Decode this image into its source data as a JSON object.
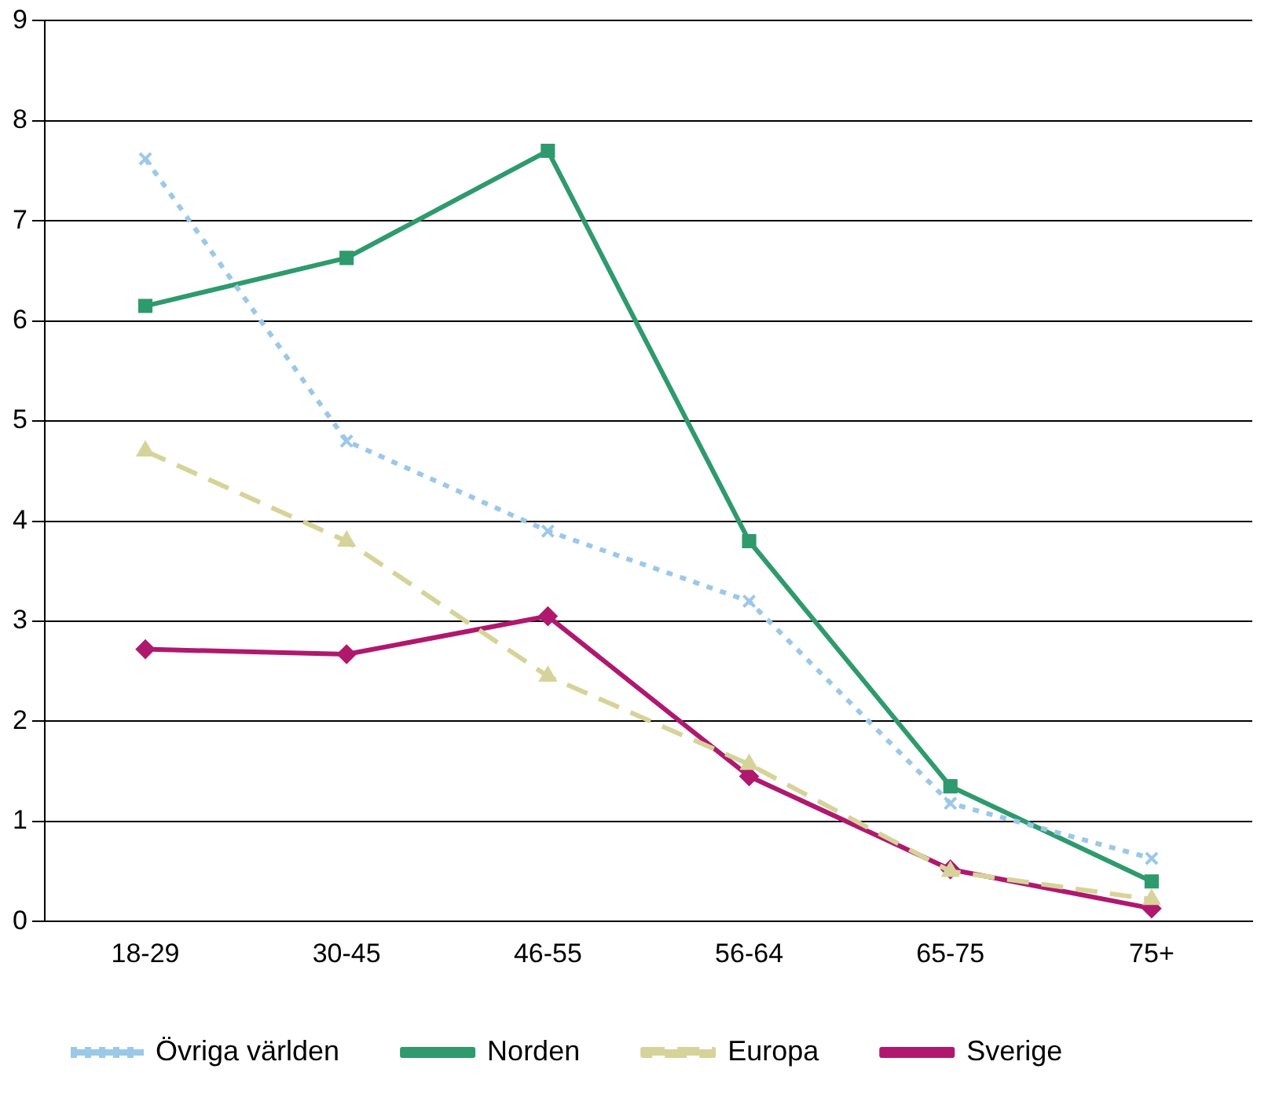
{
  "chart_data": {
    "type": "line",
    "categories": [
      "18-29",
      "30-45",
      "46-55",
      "56-64",
      "65-75",
      "75+"
    ],
    "series": [
      {
        "name": "Sverige",
        "color": "#b0186e",
        "marker": "diamond",
        "line_style": "solid",
        "values": [
          2.72,
          2.67,
          3.05,
          1.45,
          0.52,
          0.13
        ]
      },
      {
        "name": "Europa",
        "color": "#d6d39a",
        "marker": "triangle",
        "line_style": "dashed",
        "values": [
          4.7,
          3.8,
          2.45,
          1.57,
          0.5,
          0.22
        ]
      },
      {
        "name": "Norden",
        "color": "#2e9a6e",
        "marker": "square",
        "line_style": "solid",
        "values": [
          6.15,
          6.63,
          7.7,
          3.8,
          1.35,
          0.4
        ]
      },
      {
        "name": "Övriga världen",
        "color": "#9cc8e8",
        "marker": "cross",
        "line_style": "dotted",
        "values": [
          7.62,
          4.8,
          3.9,
          3.2,
          1.18,
          0.63
        ]
      }
    ],
    "ylim": [
      0,
      9
    ],
    "yticks": [
      0,
      1,
      2,
      3,
      4,
      5,
      6,
      7,
      8,
      9
    ],
    "grid": "y",
    "legend": "bottom"
  }
}
